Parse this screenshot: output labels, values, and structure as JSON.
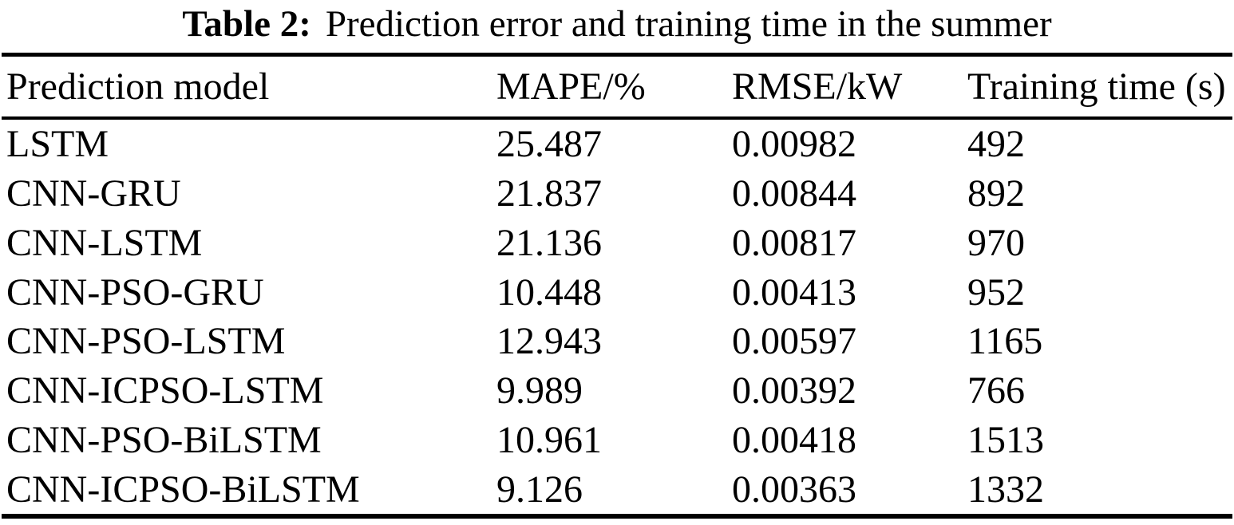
{
  "title": {
    "label": "Table 2:",
    "text": "Prediction error and training time in the summer"
  },
  "table": {
    "columns": [
      "Prediction model",
      "MAPE/%",
      "RMSE/kW",
      "Training time (s)"
    ],
    "rows": [
      {
        "model": "LSTM",
        "mape": "25.487",
        "rmse": "0.00982",
        "time": "492"
      },
      {
        "model": "CNN-GRU",
        "mape": "21.837",
        "rmse": "0.00844",
        "time": "892"
      },
      {
        "model": "CNN-LSTM",
        "mape": "21.136",
        "rmse": "0.00817",
        "time": "970"
      },
      {
        "model": "CNN-PSO-GRU",
        "mape": "10.448",
        "rmse": "0.00413",
        "time": "952"
      },
      {
        "model": "CNN-PSO-LSTM",
        "mape": "12.943",
        "rmse": "0.00597",
        "time": "1165"
      },
      {
        "model": "CNN-ICPSO-LSTM",
        "mape": "9.989",
        "rmse": "0.00392",
        "time": "766"
      },
      {
        "model": "CNN-PSO-BiLSTM",
        "mape": "10.961",
        "rmse": "0.00418",
        "time": "1513"
      },
      {
        "model": "CNN-ICPSO-BiLSTM",
        "mape": "9.126",
        "rmse": "0.00363",
        "time": "1332"
      }
    ]
  },
  "colors": {
    "text": "#000000",
    "background": "#ffffff",
    "rule": "#000000"
  }
}
